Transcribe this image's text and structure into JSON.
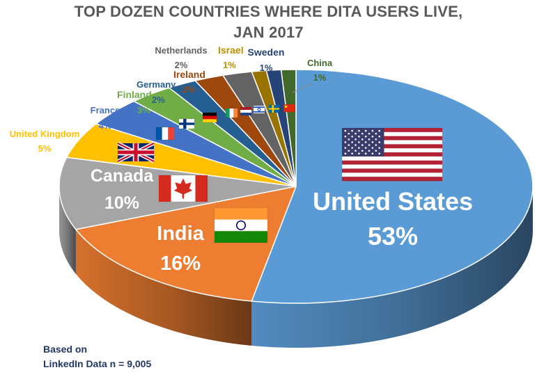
{
  "chart_data": {
    "type": "pie",
    "title_lines": [
      "TOP DOZEN COUNTRIES WHERE DITA USERS LIVE,",
      "JAN 2017"
    ],
    "source_lines": [
      "Based on",
      "LinkedIn Data n = 9,005"
    ],
    "slices": [
      {
        "name": "United States",
        "value": 53,
        "label": "53%",
        "color": "#5b9bd5",
        "flag": "us-flag"
      },
      {
        "name": "India",
        "value": 16,
        "label": "16%",
        "color": "#ed7d31",
        "flag": "india-flag"
      },
      {
        "name": "Canada",
        "value": 10,
        "label": "10%",
        "color": "#a5a5a5",
        "flag": "canada-flag"
      },
      {
        "name": "United Kingdom",
        "value": 5,
        "label": "5%",
        "color": "#ffc000",
        "flag": "uk-flag"
      },
      {
        "name": "France",
        "value": 4,
        "label": "4%",
        "color": "#4472c4",
        "flag": "france-flag"
      },
      {
        "name": "Finland",
        "value": 3,
        "label": "3%",
        "color": "#70ad47",
        "flag": "finland-flag"
      },
      {
        "name": "Germany",
        "value": 2,
        "label": "2%",
        "color": "#255e91",
        "flag": "germany-flag"
      },
      {
        "name": "Ireland",
        "value": 2,
        "label": "2%",
        "color": "#9e480e",
        "flag": "ireland-flag"
      },
      {
        "name": "Netherlands",
        "value": 2,
        "label": "2%",
        "color": "#636363",
        "flag": "netherlands-flag"
      },
      {
        "name": "Israel",
        "value": 1,
        "label": "1%",
        "color": "#997300",
        "flag": "israel-flag"
      },
      {
        "name": "Sweden",
        "value": 1,
        "label": "1%",
        "color": "#264478",
        "flag": "sweden-flag"
      },
      {
        "name": "China",
        "value": 1,
        "label": "1%",
        "color": "#43682b",
        "flag": "china-flag"
      }
    ]
  }
}
